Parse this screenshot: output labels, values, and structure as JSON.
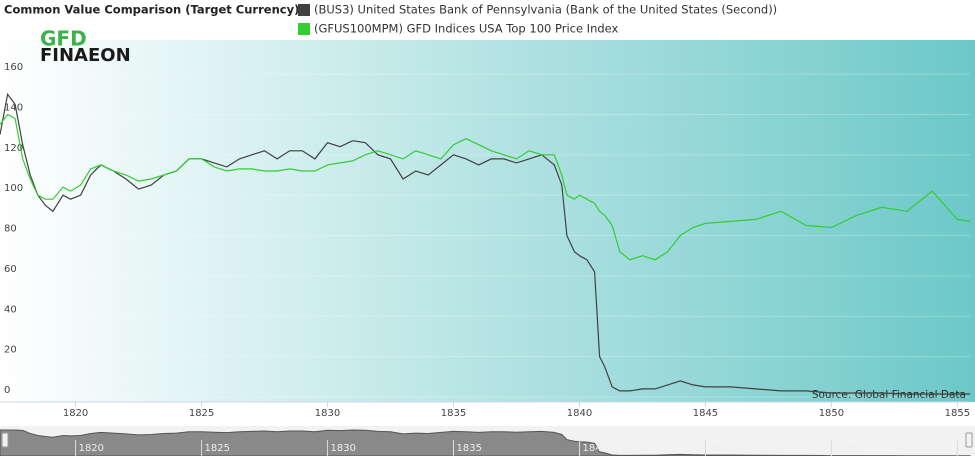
{
  "chart_data": {
    "type": "line",
    "title": "Common Value Comparison (Target Currency)",
    "logo": {
      "top": "GFD",
      "bottom": "FINAEON"
    },
    "source": "Source: Global Financial Data",
    "x": [
      1817.0,
      1817.3,
      1817.6,
      1817.9,
      1818.2,
      1818.5,
      1818.8,
      1819.1,
      1819.5,
      1819.8,
      1820.2,
      1820.6,
      1821.0,
      1821.5,
      1822.0,
      1822.5,
      1823.0,
      1823.5,
      1824.0,
      1824.5,
      1825.0,
      1825.5,
      1826.0,
      1826.5,
      1827.0,
      1827.5,
      1828.0,
      1828.5,
      1829.0,
      1829.5,
      1830.0,
      1830.5,
      1831.0,
      1831.5,
      1832.0,
      1832.5,
      1833.0,
      1833.5,
      1834.0,
      1834.5,
      1835.0,
      1835.5,
      1836.0,
      1836.5,
      1837.0,
      1837.5,
      1838.0,
      1838.5,
      1839.0,
      1839.3,
      1839.5,
      1839.8,
      1840.0,
      1840.3,
      1840.6,
      1840.8,
      1841.0,
      1841.3,
      1841.6,
      1842.0,
      1842.5,
      1843.0,
      1843.5,
      1844.0,
      1844.5,
      1845.0,
      1846.0,
      1847.0,
      1848.0,
      1849.0,
      1850.0,
      1851.0,
      1852.0,
      1853.0,
      1854.0,
      1855.0,
      1855.5
    ],
    "series": [
      {
        "name": "(BUS3) United States Bank of Pennsylvania (Bank of the United States (Second))",
        "color": "#404040",
        "values": [
          130,
          150,
          145,
          125,
          110,
          100,
          95,
          92,
          100,
          98,
          100,
          110,
          115,
          112,
          108,
          103,
          105,
          110,
          112,
          118,
          118,
          116,
          114,
          118,
          120,
          122,
          118,
          122,
          122,
          118,
          126,
          124,
          127,
          126,
          120,
          118,
          108,
          112,
          110,
          115,
          120,
          118,
          115,
          118,
          118,
          116,
          118,
          120,
          115,
          105,
          80,
          72,
          70,
          68,
          62,
          20,
          15,
          5,
          3,
          3,
          4,
          4,
          6,
          8,
          6,
          5,
          5,
          4,
          3,
          3,
          2,
          2,
          2,
          1.5,
          1.5,
          1.5,
          1.5
        ]
      },
      {
        "name": "(GFUS100MPM) GFD Indices USA Top 100 Price Index",
        "color": "#33cc33",
        "values": [
          135,
          140,
          138,
          118,
          108,
          100,
          98,
          98,
          104,
          102,
          105,
          113,
          115,
          112,
          110,
          107,
          108,
          110,
          112,
          118,
          118,
          114,
          112,
          113,
          113,
          112,
          112,
          113,
          112,
          112,
          115,
          116,
          117,
          120,
          122,
          120,
          118,
          122,
          120,
          118,
          125,
          128,
          125,
          122,
          120,
          118,
          122,
          120,
          120,
          110,
          100,
          98,
          100,
          98,
          96,
          92,
          90,
          85,
          72,
          68,
          70,
          68,
          72,
          80,
          84,
          86,
          87,
          88,
          92,
          85,
          84,
          90,
          94,
          92,
          102,
          88,
          87
        ]
      }
    ],
    "xlim": [
      1817,
      1855.5
    ],
    "xticks": [
      1820,
      1825,
      1830,
      1835,
      1840,
      1845,
      1850,
      1855
    ],
    "ylim": [
      0,
      165
    ],
    "yticks": [
      0,
      20,
      40,
      60,
      80,
      100,
      120,
      140,
      160
    ]
  }
}
